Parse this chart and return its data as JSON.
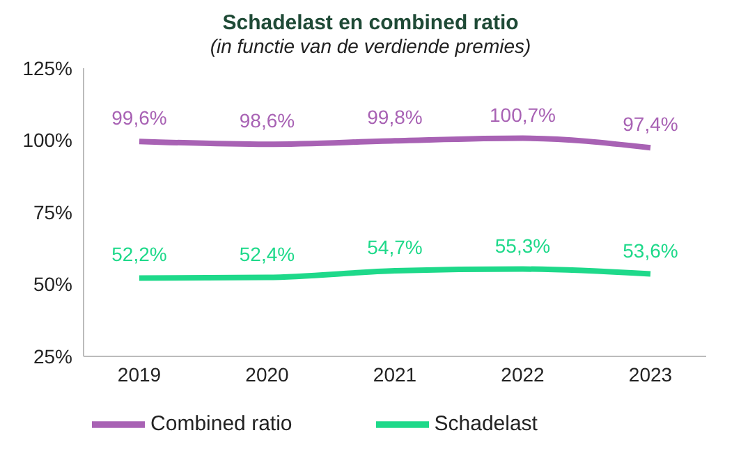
{
  "chart_data": {
    "type": "line",
    "title": "Schadelast en combined ratio",
    "subtitle": "(in functie van de verdiende premies)",
    "categories": [
      "2019",
      "2020",
      "2021",
      "2022",
      "2023"
    ],
    "series": [
      {
        "name": "Schadelast",
        "color": "#1ed98a",
        "values": [
          52.2,
          52.4,
          54.7,
          55.3,
          53.6
        ],
        "value_labels": [
          "52,2%",
          "52,4%",
          "54,7%",
          "55,3%",
          "53,6%"
        ]
      },
      {
        "name": "Combined ratio",
        "color": "#a862b4",
        "values": [
          99.6,
          98.6,
          99.8,
          100.7,
          97.4
        ],
        "value_labels": [
          "99,6%",
          "98,6%",
          "99,8%",
          "100,7%",
          "97,4%"
        ]
      }
    ],
    "ylim": [
      25,
      125
    ],
    "yticks": [
      {
        "value": 25,
        "label": "25%"
      },
      {
        "value": 50,
        "label": "50%"
      },
      {
        "value": 75,
        "label": "75%"
      },
      {
        "value": 100,
        "label": "100%"
      },
      {
        "value": 125,
        "label": "125%"
      }
    ],
    "grid": false,
    "legend": "bottom",
    "marker": "none",
    "line_style": "solid"
  }
}
